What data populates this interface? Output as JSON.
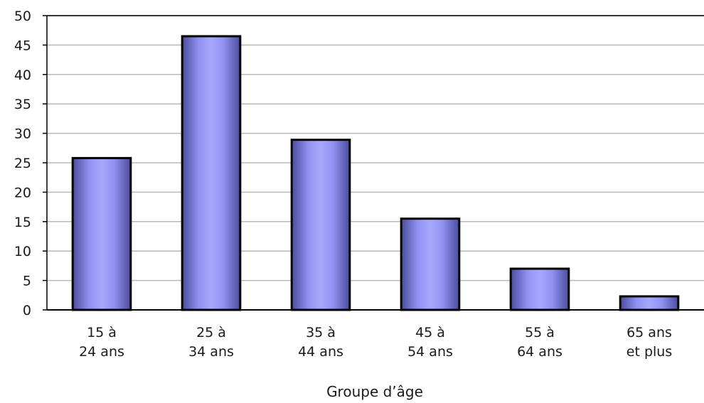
{
  "chart_data": {
    "type": "bar",
    "categories": [
      [
        "15 à",
        "24 ans"
      ],
      [
        "25 à",
        "34 ans"
      ],
      [
        "35 à",
        "44 ans"
      ],
      [
        "45 à",
        "54 ans"
      ],
      [
        "55 à",
        "64 ans"
      ],
      [
        "65 ans",
        "et plus"
      ]
    ],
    "values": [
      25.8,
      46.5,
      28.9,
      15.5,
      7.0,
      2.3
    ],
    "xlabel": "Groupe d’âge",
    "ylabel": "",
    "ylim": [
      0,
      50
    ],
    "yticks": [
      0,
      5,
      10,
      15,
      20,
      25,
      30,
      35,
      40,
      45,
      50
    ],
    "grid": true,
    "colors": {
      "bar_edge": "#9a9cff",
      "bar_center": "#a9abff",
      "bar_dark": "#4e50a0",
      "bar_outline": "#000000",
      "grid": "#b8b8b8",
      "axis": "#000000"
    }
  }
}
